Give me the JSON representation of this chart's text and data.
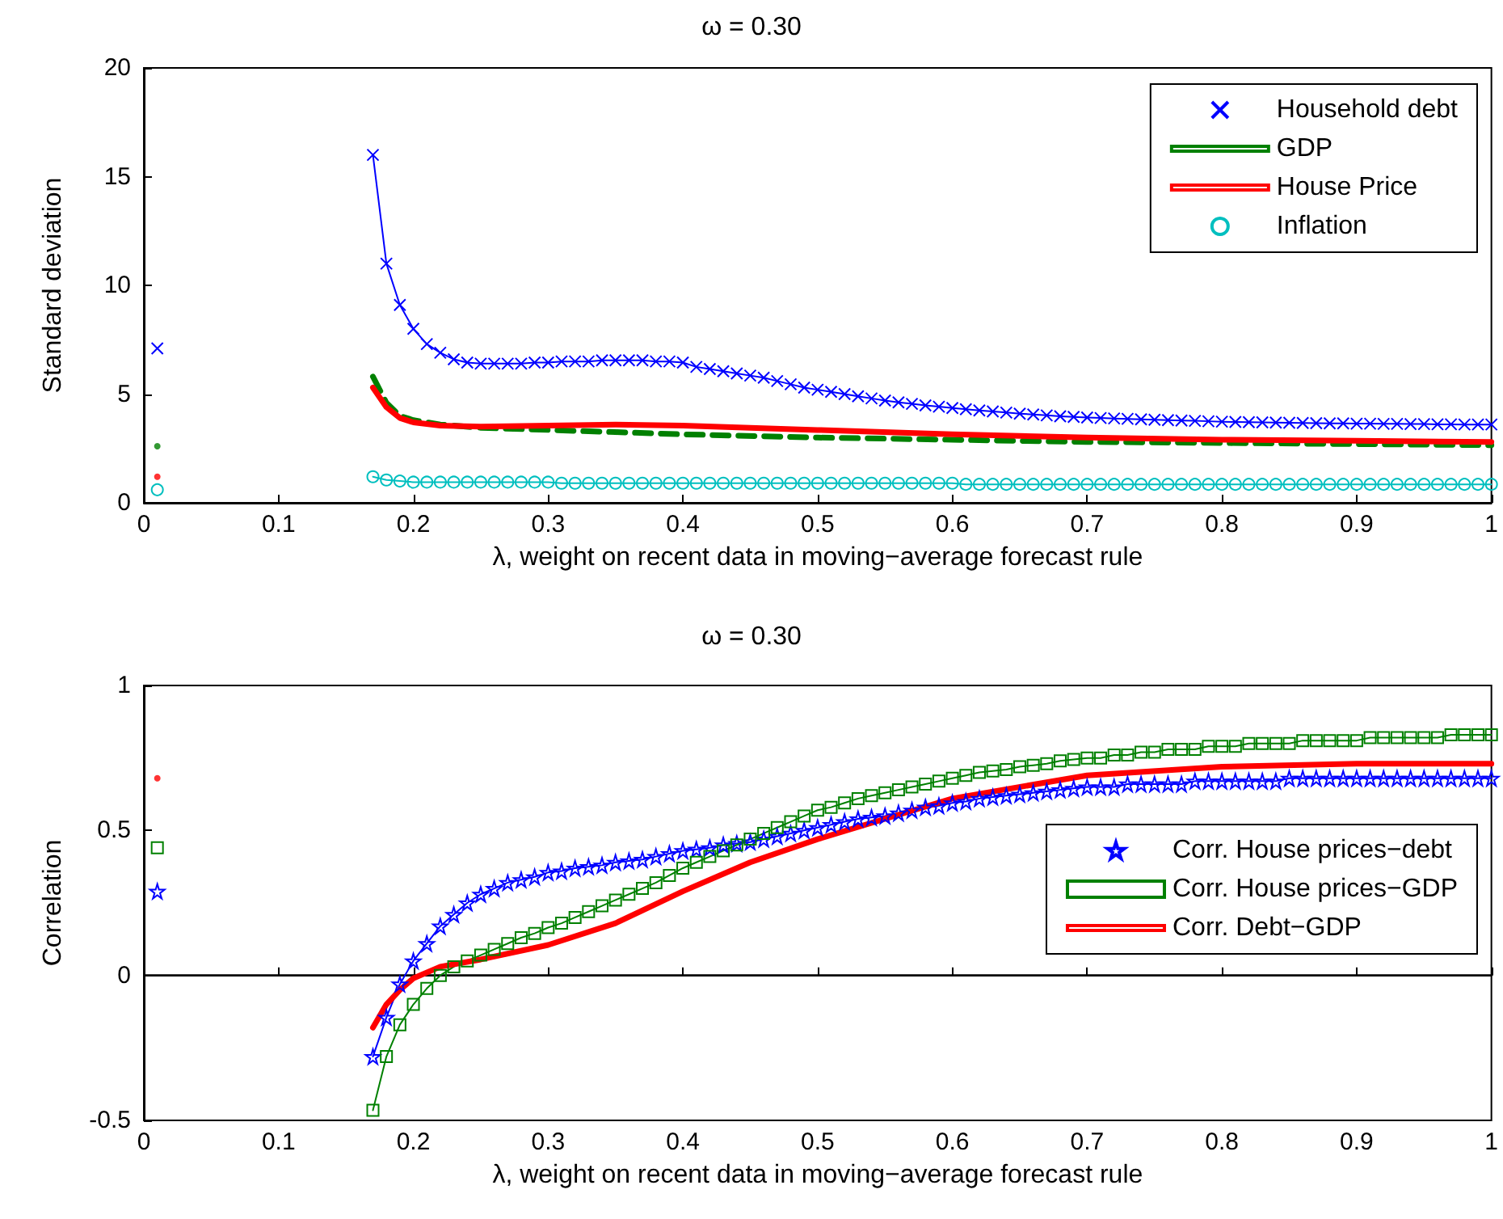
{
  "chart_data": [
    {
      "type": "line",
      "title": "ω = 0.30",
      "xlabel": "λ, weight on recent data in moving−average forecast rule",
      "ylabel": "Standard deviation",
      "x": [
        0.01,
        0.1,
        0.17,
        0.18,
        0.19,
        0.2,
        0.21,
        0.22,
        0.23,
        0.24,
        0.25,
        0.26,
        0.27,
        0.28,
        0.29,
        0.3,
        0.31,
        0.32,
        0.33,
        0.34,
        0.35,
        0.36,
        0.37,
        0.38,
        0.39,
        0.4,
        0.41,
        0.42,
        0.43,
        0.44,
        0.45,
        0.46,
        0.47,
        0.48,
        0.49,
        0.5,
        0.51,
        0.52,
        0.53,
        0.54,
        0.55,
        0.56,
        0.57,
        0.58,
        0.59,
        0.6,
        0.61,
        0.62,
        0.63,
        0.64,
        0.65,
        0.66,
        0.67,
        0.68,
        0.69,
        0.7,
        0.71,
        0.72,
        0.73,
        0.74,
        0.75,
        0.76,
        0.77,
        0.78,
        0.79,
        0.8,
        0.81,
        0.82,
        0.83,
        0.84,
        0.85,
        0.86,
        0.87,
        0.88,
        0.89,
        0.9,
        0.91,
        0.92,
        0.93,
        0.94,
        0.95,
        0.96,
        0.97,
        0.98,
        0.99,
        1
      ],
      "xlim": [
        0,
        1
      ],
      "xticks": [
        0,
        0.1,
        0.2,
        0.3,
        0.4,
        0.5,
        0.6,
        0.7,
        0.8,
        0.9,
        1
      ],
      "ylim": [
        0,
        20
      ],
      "yticks": [
        0,
        5,
        10,
        15,
        20
      ],
      "grid": false,
      "legend": "top right",
      "series": [
        {
          "name": "Household debt",
          "color": "#0000ff",
          "marker": "cross",
          "line_style": "solid",
          "values": [
            7.1,
            null,
            16,
            11,
            9.1,
            8.0,
            7.3,
            6.9,
            6.6,
            6.45,
            6.4,
            6.4,
            6.4,
            6.4,
            6.45,
            6.45,
            6.5,
            6.5,
            6.5,
            6.55,
            6.55,
            6.55,
            6.55,
            6.5,
            6.5,
            6.45,
            6.25,
            6.15,
            6.05,
            5.95,
            5.85,
            5.75,
            5.6,
            5.45,
            5.3,
            5.2,
            5.1,
            5.0,
            4.9,
            4.8,
            4.7,
            4.62,
            4.55,
            4.48,
            4.42,
            4.36,
            4.3,
            4.25,
            4.2,
            4.15,
            4.1,
            4.06,
            4.02,
            3.98,
            3.95,
            3.92,
            3.9,
            3.88,
            3.86,
            3.84,
            3.82,
            3.8,
            3.78,
            3.77,
            3.75,
            3.73,
            3.72,
            3.71,
            3.7,
            3.69,
            3.68,
            3.67,
            3.66,
            3.65,
            3.65,
            3.64,
            3.64,
            3.63,
            3.63,
            3.62,
            3.62,
            3.61,
            3.61,
            3.6,
            3.6,
            3.6
          ]
        },
        {
          "name": "GDP",
          "color": "#008000",
          "marker": "none",
          "line_style": "dashed",
          "x": [
            0.17,
            0.18,
            0.19,
            0.2,
            0.22,
            0.25,
            0.3,
            0.35,
            0.4,
            0.5,
            0.6,
            0.7,
            0.8,
            0.9,
            1
          ],
          "values": [
            5.8,
            4.6,
            4.0,
            3.8,
            3.6,
            3.45,
            3.35,
            3.25,
            3.15,
            3.0,
            2.9,
            2.8,
            2.75,
            2.7,
            2.65
          ]
        },
        {
          "name": "House Price",
          "color": "#ff0000",
          "marker": "none",
          "line_style": "solid",
          "x": [
            0.17,
            0.18,
            0.19,
            0.2,
            0.22,
            0.25,
            0.3,
            0.35,
            0.4,
            0.5,
            0.6,
            0.7,
            0.8,
            0.9,
            1
          ],
          "values": [
            5.3,
            4.4,
            3.9,
            3.7,
            3.55,
            3.5,
            3.55,
            3.6,
            3.55,
            3.35,
            3.15,
            3.0,
            2.9,
            2.85,
            2.8
          ]
        },
        {
          "name": "Inflation",
          "color": "#00bfbf",
          "marker": "circle",
          "line_style": "solid",
          "values": [
            0.6,
            null,
            1.2,
            1.05,
            1.0,
            0.95,
            0.95,
            0.95,
            0.95,
            0.95,
            0.95,
            0.95,
            0.95,
            0.95,
            0.95,
            0.95,
            0.9,
            0.9,
            0.9,
            0.9,
            0.9,
            0.9,
            0.9,
            0.9,
            0.9,
            0.9,
            0.9,
            0.9,
            0.9,
            0.9,
            0.9,
            0.9,
            0.9,
            0.9,
            0.9,
            0.9,
            0.9,
            0.9,
            0.9,
            0.9,
            0.9,
            0.9,
            0.9,
            0.9,
            0.9,
            0.9,
            0.85,
            0.85,
            0.85,
            0.85,
            0.85,
            0.85,
            0.85,
            0.85,
            0.85,
            0.85,
            0.85,
            0.85,
            0.85,
            0.85,
            0.85,
            0.85,
            0.85,
            0.85,
            0.85,
            0.85,
            0.85,
            0.85,
            0.85,
            0.85,
            0.85,
            0.85,
            0.85,
            0.85,
            0.85,
            0.85,
            0.85,
            0.85,
            0.85,
            0.85,
            0.85,
            0.85,
            0.85,
            0.85,
            0.85,
            0.85
          ]
        },
        {
          "type": "scatter",
          "color": "#008000",
          "marker": "circle",
          "x": [
            0.01
          ],
          "values": [
            2.6
          ]
        },
        {
          "type": "scatter",
          "color": "#ff0000",
          "marker": "circle",
          "x": [
            0.01
          ],
          "values": [
            1.2
          ]
        }
      ]
    },
    {
      "type": "line",
      "title": "ω = 0.30",
      "xlabel": "λ, weight on recent data in moving−average forecast rule",
      "ylabel": "Correlation",
      "x": [
        0.01,
        0.1,
        0.17,
        0.18,
        0.19,
        0.2,
        0.21,
        0.22,
        0.23,
        0.24,
        0.25,
        0.26,
        0.27,
        0.28,
        0.29,
        0.3,
        0.31,
        0.32,
        0.33,
        0.34,
        0.35,
        0.36,
        0.37,
        0.38,
        0.39,
        0.4,
        0.41,
        0.42,
        0.43,
        0.44,
        0.45,
        0.46,
        0.47,
        0.48,
        0.49,
        0.5,
        0.51,
        0.52,
        0.53,
        0.54,
        0.55,
        0.56,
        0.57,
        0.58,
        0.59,
        0.6,
        0.61,
        0.62,
        0.63,
        0.64,
        0.65,
        0.66,
        0.67,
        0.68,
        0.69,
        0.7,
        0.71,
        0.72,
        0.73,
        0.74,
        0.75,
        0.76,
        0.77,
        0.78,
        0.79,
        0.8,
        0.81,
        0.82,
        0.83,
        0.84,
        0.85,
        0.86,
        0.87,
        0.88,
        0.89,
        0.9,
        0.91,
        0.92,
        0.93,
        0.94,
        0.95,
        0.96,
        0.97,
        0.98,
        0.99,
        1
      ],
      "xlim": [
        0,
        1
      ],
      "xticks": [
        0,
        0.1,
        0.2,
        0.3,
        0.4,
        0.5,
        0.6,
        0.7,
        0.8,
        0.9,
        1
      ],
      "ylim": [
        -0.5,
        1
      ],
      "yticks": [
        -0.5,
        0,
        0.5,
        1
      ],
      "grid": false,
      "legend": "right",
      "ref_lines": [
        {
          "axis": "y",
          "value": 0,
          "color": "#000000"
        }
      ],
      "series": [
        {
          "name": "Corr. House prices−debt",
          "color": "#0000ff",
          "marker": "star",
          "line_style": "solid",
          "values": [
            0.29,
            null,
            -0.28,
            -0.145,
            -0.03,
            0.05,
            0.11,
            0.17,
            0.21,
            0.25,
            0.28,
            0.3,
            0.32,
            0.33,
            0.34,
            0.355,
            0.36,
            0.37,
            0.375,
            0.38,
            0.39,
            0.395,
            0.4,
            0.41,
            0.42,
            0.43,
            0.435,
            0.44,
            0.45,
            0.455,
            0.46,
            0.47,
            0.48,
            0.49,
            0.5,
            0.51,
            0.52,
            0.53,
            0.54,
            0.545,
            0.55,
            0.56,
            0.57,
            0.58,
            0.585,
            0.595,
            0.6,
            0.61,
            0.615,
            0.62,
            0.625,
            0.63,
            0.635,
            0.64,
            0.645,
            0.65,
            0.65,
            0.65,
            0.66,
            0.66,
            0.66,
            0.66,
            0.66,
            0.67,
            0.67,
            0.67,
            0.67,
            0.67,
            0.67,
            0.67,
            0.68,
            0.68,
            0.68,
            0.68,
            0.68,
            0.68,
            0.68,
            0.68,
            0.68,
            0.68,
            0.68,
            0.68,
            0.68,
            0.68,
            0.68,
            0.68
          ]
        },
        {
          "name": "Corr. House prices−GDP",
          "color": "#008000",
          "marker": "square",
          "line_style": "solid",
          "values": [
            0.44,
            null,
            -0.465,
            -0.28,
            -0.17,
            -0.1,
            -0.045,
            0.0,
            0.03,
            0.05,
            0.07,
            0.09,
            0.11,
            0.13,
            0.145,
            0.165,
            0.18,
            0.2,
            0.22,
            0.24,
            0.26,
            0.28,
            0.3,
            0.32,
            0.345,
            0.37,
            0.39,
            0.41,
            0.43,
            0.45,
            0.47,
            0.49,
            0.51,
            0.53,
            0.55,
            0.57,
            0.58,
            0.595,
            0.61,
            0.62,
            0.63,
            0.64,
            0.65,
            0.66,
            0.67,
            0.68,
            0.69,
            0.7,
            0.705,
            0.71,
            0.72,
            0.725,
            0.73,
            0.74,
            0.745,
            0.75,
            0.75,
            0.76,
            0.76,
            0.77,
            0.77,
            0.78,
            0.78,
            0.78,
            0.79,
            0.79,
            0.79,
            0.8,
            0.8,
            0.8,
            0.8,
            0.81,
            0.81,
            0.81,
            0.81,
            0.81,
            0.82,
            0.82,
            0.82,
            0.82,
            0.82,
            0.82,
            0.83,
            0.83,
            0.83,
            0.83
          ]
        },
        {
          "name": "Corr. Debt−GDP",
          "color": "#ff0000",
          "marker": "none",
          "line_style": "solid",
          "x": [
            0.17,
            0.18,
            0.19,
            0.2,
            0.22,
            0.25,
            0.3,
            0.35,
            0.4,
            0.45,
            0.5,
            0.55,
            0.6,
            0.7,
            0.8,
            0.9,
            1
          ],
          "values": [
            -0.18,
            -0.1,
            -0.05,
            -0.01,
            0.03,
            0.055,
            0.105,
            0.18,
            0.29,
            0.39,
            0.47,
            0.54,
            0.61,
            0.69,
            0.72,
            0.73,
            0.73
          ]
        },
        {
          "type": "scatter",
          "color": "#ff0000",
          "marker": "circle",
          "x": [
            0.01
          ],
          "values": [
            0.68
          ]
        }
      ]
    }
  ]
}
